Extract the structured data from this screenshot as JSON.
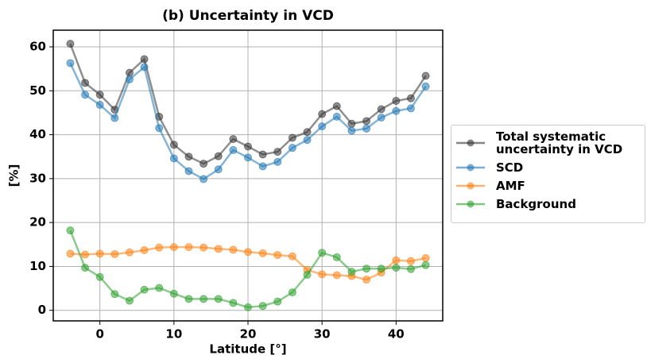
{
  "chart_data": {
    "type": "line",
    "title": "(b) Uncertainty in VCD",
    "xlabel": "Latitude [°]",
    "ylabel": "[%]",
    "x": [
      -4,
      -2,
      0,
      2,
      4,
      6,
      8,
      10,
      12,
      14,
      16,
      18,
      20,
      22,
      24,
      26,
      28,
      30,
      32,
      34,
      36,
      38,
      40,
      42,
      44
    ],
    "series": [
      {
        "name": "Total systematic\nuncertainty in VCD",
        "color": "#333333",
        "values": [
          60.7,
          51.8,
          49.1,
          45.7,
          54.1,
          57.2,
          44.1,
          37.7,
          35.0,
          33.4,
          35.1,
          39.0,
          37.3,
          35.5,
          36.1,
          39.3,
          40.6,
          44.7,
          46.5,
          42.5,
          43.1,
          45.8,
          47.7,
          48.3,
          53.4
        ]
      },
      {
        "name": "SCD",
        "color": "#1f77b4",
        "values": [
          56.3,
          49.1,
          46.8,
          43.8,
          52.6,
          55.4,
          41.5,
          34.6,
          31.7,
          29.9,
          32.1,
          36.5,
          34.8,
          32.8,
          33.8,
          37.0,
          38.8,
          41.9,
          44.1,
          40.9,
          41.4,
          43.9,
          45.4,
          46.0,
          51.0
        ]
      },
      {
        "name": "AMF",
        "color": "#ff7f0e",
        "values": [
          12.9,
          12.7,
          12.9,
          12.8,
          13.2,
          13.7,
          14.3,
          14.4,
          14.4,
          14.3,
          14.0,
          13.8,
          13.3,
          13.0,
          12.6,
          12.3,
          9.2,
          8.2,
          8.0,
          7.8,
          7.0,
          8.6,
          11.4,
          11.2,
          11.9
        ]
      },
      {
        "name": "Background",
        "color": "#2ca02c",
        "values": [
          18.2,
          9.7,
          7.6,
          3.7,
          2.2,
          4.7,
          5.1,
          3.8,
          2.6,
          2.6,
          2.6,
          1.7,
          0.7,
          1.0,
          2.0,
          4.1,
          8.1,
          13.1,
          12.1,
          8.8,
          9.5,
          9.5,
          9.7,
          9.4,
          10.3
        ]
      }
    ],
    "xlim": [
      -6.3,
      46.3
    ],
    "ylim": [
      -2.4,
      63.8
    ],
    "xticks": [
      0,
      10,
      20,
      30,
      40
    ],
    "yticks": [
      0,
      10,
      20,
      30,
      40,
      50,
      60
    ],
    "grid": true,
    "legend": "outside right"
  }
}
